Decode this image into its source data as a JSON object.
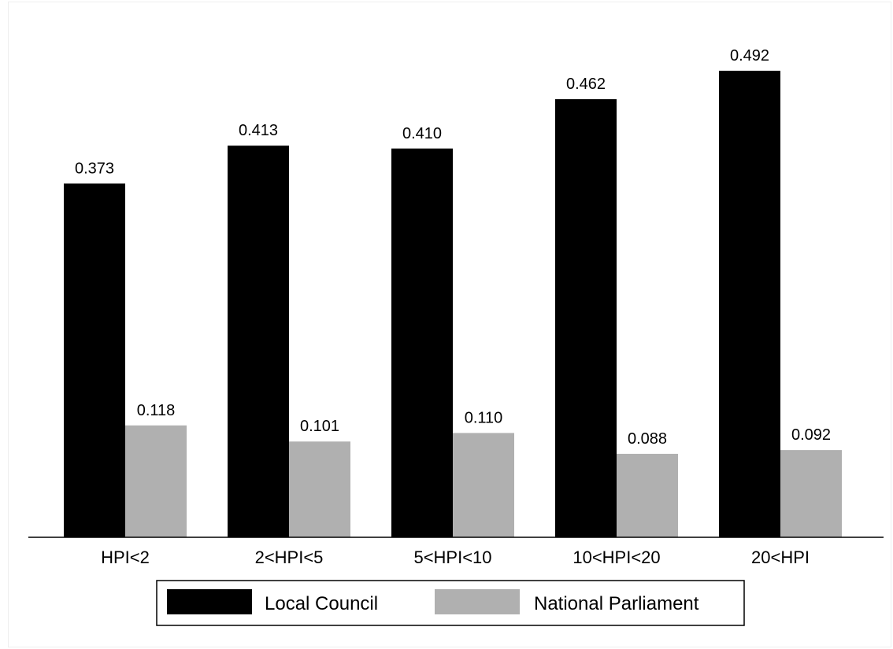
{
  "chart_data": {
    "type": "bar",
    "categories": [
      "HPI<2",
      "2<HPI<5",
      "5<HPI<10",
      "10<HPI<20",
      "20<HPI"
    ],
    "series": [
      {
        "name": "Local Council",
        "values": [
          0.373,
          0.413,
          0.41,
          0.462,
          0.492
        ],
        "labels": [
          "0.373",
          "0.413",
          "0.410",
          "0.462",
          "0.492"
        ],
        "color": "#000000"
      },
      {
        "name": "National Parliament",
        "values": [
          0.118,
          0.101,
          0.11,
          0.088,
          0.092
        ],
        "labels": [
          "0.118",
          "0.101",
          "0.110",
          "0.088",
          "0.092"
        ],
        "color": "#b0b0b0"
      }
    ],
    "ylim": [
      0,
      0.55
    ],
    "grid": false,
    "legend_position": "bottom"
  }
}
